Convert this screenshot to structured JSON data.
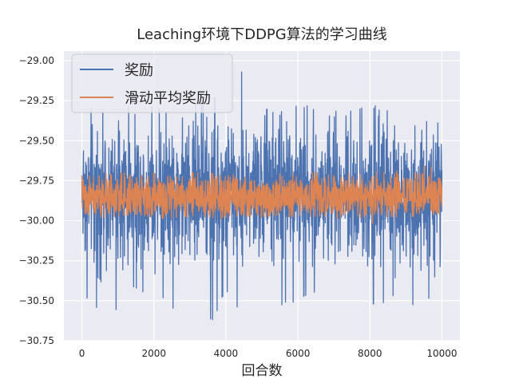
{
  "chart_data": {
    "type": "line",
    "title": "Leaching环境下DDPG算法的学习曲线",
    "xlabel": "回合数",
    "ylabel": "",
    "xlim": [
      -500,
      10500
    ],
    "ylim": [
      -30.75,
      -28.94
    ],
    "x_ticks": [
      0,
      2000,
      4000,
      6000,
      8000,
      10000
    ],
    "x_tick_labels": [
      "0",
      "2000",
      "4000",
      "6000",
      "8000",
      "10000"
    ],
    "y_ticks": [
      -30.75,
      -30.5,
      -30.25,
      -30.0,
      -29.75,
      -29.5,
      -29.25,
      -29.0
    ],
    "y_tick_labels": [
      "−30.75",
      "−30.50",
      "−30.25",
      "−30.00",
      "−29.75",
      "−29.50",
      "−29.25",
      "−29.00"
    ],
    "grid": true,
    "legend_position": "top-left",
    "x_start": 0,
    "x_end": 10000,
    "series": [
      {
        "name": "奖励",
        "color": "#4c72b0",
        "summary": {
          "typical_low": -30.2,
          "typical_high": -29.45,
          "min": -30.7,
          "max": -29.0
        },
        "envelope": [
          {
            "x": 0,
            "min": -30.6,
            "max": -29.3
          },
          {
            "x": 250,
            "min": -30.4,
            "max": -29.25
          },
          {
            "x": 500,
            "min": -30.68,
            "max": -29.35
          },
          {
            "x": 1000,
            "min": -30.55,
            "max": -29.15
          },
          {
            "x": 1500,
            "min": -30.45,
            "max": -29.3
          },
          {
            "x": 2000,
            "min": -30.5,
            "max": -29.25
          },
          {
            "x": 2500,
            "min": -30.55,
            "max": -29.35
          },
          {
            "x": 3000,
            "min": -30.6,
            "max": -29.3
          },
          {
            "x": 3500,
            "min": -30.69,
            "max": -29.2
          },
          {
            "x": 4000,
            "min": -30.45,
            "max": -29.2
          },
          {
            "x": 4350,
            "min": -30.55,
            "max": -29.0
          },
          {
            "x": 5000,
            "min": -30.5,
            "max": -29.3
          },
          {
            "x": 5500,
            "min": -30.55,
            "max": -29.3
          },
          {
            "x": 6000,
            "min": -30.5,
            "max": -29.25
          },
          {
            "x": 6500,
            "min": -30.45,
            "max": -29.3
          },
          {
            "x": 7000,
            "min": -30.55,
            "max": -29.3
          },
          {
            "x": 7500,
            "min": -30.5,
            "max": -29.3
          },
          {
            "x": 8000,
            "min": -30.55,
            "max": -29.25
          },
          {
            "x": 8500,
            "min": -30.5,
            "max": -29.3
          },
          {
            "x": 9000,
            "min": -30.55,
            "max": -29.25
          },
          {
            "x": 9500,
            "min": -30.55,
            "max": -29.35
          },
          {
            "x": 10000,
            "min": -30.45,
            "max": -29.4
          }
        ]
      },
      {
        "name": "滑动平均奖励",
        "color": "#dd8452",
        "summary": {
          "typical_low": -29.97,
          "typical_high": -29.72,
          "min": -30.05,
          "max": -29.62
        },
        "envelope": [
          {
            "x": 0,
            "min": -29.95,
            "max": -29.7
          },
          {
            "x": 500,
            "min": -29.98,
            "max": -29.72
          },
          {
            "x": 1000,
            "min": -29.97,
            "max": -29.68
          },
          {
            "x": 1500,
            "min": -29.96,
            "max": -29.72
          },
          {
            "x": 2000,
            "min": -29.98,
            "max": -29.7
          },
          {
            "x": 2500,
            "min": -30.0,
            "max": -29.72
          },
          {
            "x": 3000,
            "min": -29.97,
            "max": -29.7
          },
          {
            "x": 3500,
            "min": -29.98,
            "max": -29.7
          },
          {
            "x": 4000,
            "min": -30.0,
            "max": -29.72
          },
          {
            "x": 4500,
            "min": -29.97,
            "max": -29.7
          },
          {
            "x": 5000,
            "min": -29.98,
            "max": -29.72
          },
          {
            "x": 5500,
            "min": -29.96,
            "max": -29.7
          },
          {
            "x": 6000,
            "min": -29.98,
            "max": -29.62
          },
          {
            "x": 6500,
            "min": -29.97,
            "max": -29.7
          },
          {
            "x": 7000,
            "min": -29.98,
            "max": -29.72
          },
          {
            "x": 7500,
            "min": -30.0,
            "max": -29.7
          },
          {
            "x": 8000,
            "min": -30.02,
            "max": -29.7
          },
          {
            "x": 8500,
            "min": -29.98,
            "max": -29.68
          },
          {
            "x": 9000,
            "min": -29.97,
            "max": -29.7
          },
          {
            "x": 9500,
            "min": -29.98,
            "max": -29.63
          },
          {
            "x": 10000,
            "min": -29.95,
            "max": -29.72
          }
        ]
      }
    ]
  }
}
